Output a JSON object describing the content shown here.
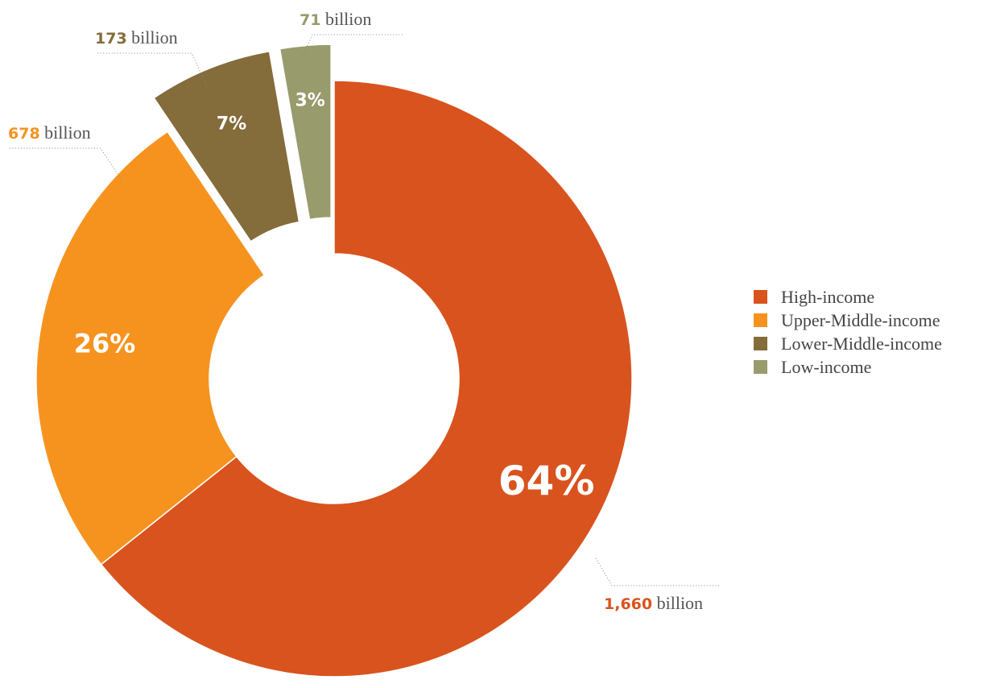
{
  "chart_data": {
    "type": "pie",
    "variant": "donut",
    "unit": "billion",
    "slices": [
      {
        "name": "High-income",
        "value": 1660,
        "value_label": "1,660",
        "percent_label": "64%",
        "color": "#D9531E",
        "exploded": false
      },
      {
        "name": "Upper-Middle-income",
        "value": 678,
        "value_label": "678",
        "percent_label": "26%",
        "color": "#F6931F",
        "exploded": false
      },
      {
        "name": "Lower-Middle-income",
        "value": 173,
        "value_label": "173",
        "percent_label": "7%",
        "color": "#846C3B",
        "exploded": true
      },
      {
        "name": "Low-income",
        "value": 71,
        "value_label": "71",
        "percent_label": "3%",
        "color": "#989B6C",
        "exploded": true
      }
    ],
    "legend_position": "right"
  }
}
